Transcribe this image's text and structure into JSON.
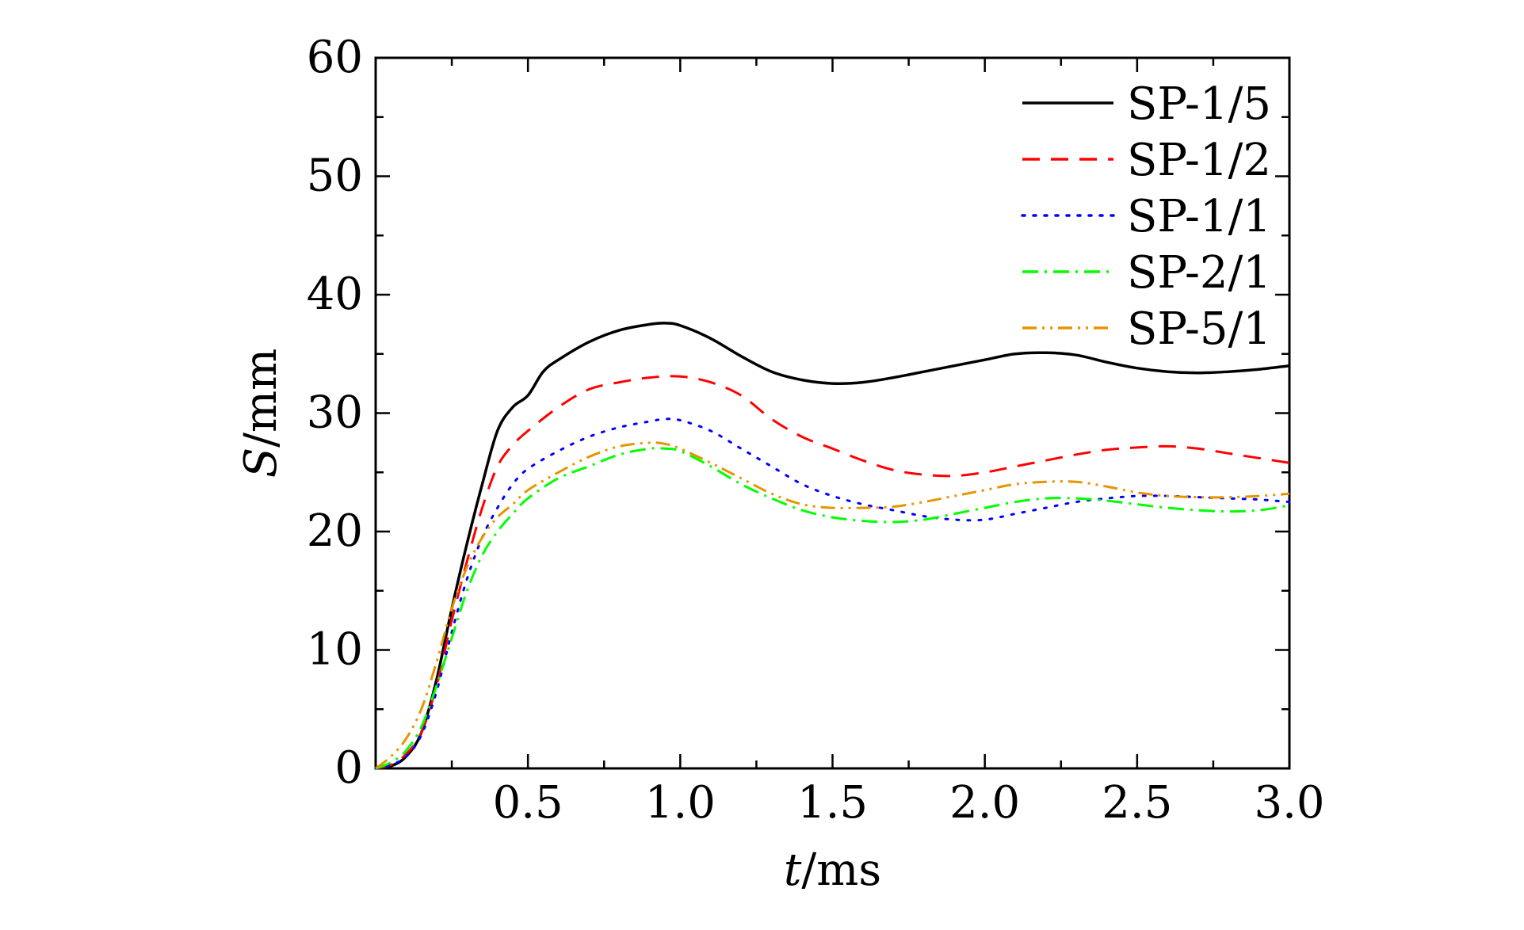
{
  "chart_data": {
    "type": "line",
    "xlabel": {
      "italic": "t",
      "rest": "/ms"
    },
    "ylabel": {
      "italic": "S",
      "rest": "/mm"
    },
    "xlim": [
      0,
      3.0
    ],
    "ylim": [
      0,
      60
    ],
    "xticks": [
      0.5,
      1.0,
      1.5,
      2.0,
      2.5,
      3.0
    ],
    "xtick_labels": [
      "0.5",
      "1.0",
      "1.5",
      "2.0",
      "2.5",
      "3.0"
    ],
    "yticks": [
      0,
      10,
      20,
      30,
      40,
      50,
      60
    ],
    "ytick_labels": [
      "0",
      "10",
      "20",
      "30",
      "40",
      "50",
      "60"
    ],
    "grid": false,
    "legend_position": "top-right",
    "series": [
      {
        "name": "SP-1/5",
        "color": "#000000",
        "dash": "solid",
        "x": [
          0,
          0.05,
          0.1,
          0.15,
          0.2,
          0.25,
          0.3,
          0.35,
          0.4,
          0.45,
          0.5,
          0.55,
          0.6,
          0.7,
          0.8,
          0.9,
          0.95,
          1.0,
          1.1,
          1.2,
          1.3,
          1.4,
          1.5,
          1.6,
          1.7,
          1.8,
          1.9,
          2.0,
          2.1,
          2.2,
          2.3,
          2.4,
          2.5,
          2.6,
          2.7,
          2.8,
          2.9,
          3.0
        ],
        "y": [
          0,
          0.2,
          1.0,
          3.0,
          7.5,
          13.5,
          19.0,
          24.0,
          28.5,
          30.5,
          31.5,
          33.5,
          34.5,
          36.0,
          37.0,
          37.5,
          37.6,
          37.4,
          36.3,
          34.8,
          33.5,
          32.8,
          32.5,
          32.6,
          33.0,
          33.5,
          34.0,
          34.5,
          35.0,
          35.1,
          34.9,
          34.3,
          33.8,
          33.5,
          33.4,
          33.5,
          33.7,
          34.0
        ]
      },
      {
        "name": "SP-1/2",
        "color": "#ff0000",
        "dash": "dashed",
        "x": [
          0,
          0.05,
          0.1,
          0.15,
          0.2,
          0.25,
          0.3,
          0.35,
          0.4,
          0.45,
          0.5,
          0.6,
          0.7,
          0.8,
          0.9,
          1.0,
          1.1,
          1.2,
          1.3,
          1.4,
          1.5,
          1.6,
          1.7,
          1.8,
          1.9,
          2.0,
          2.1,
          2.2,
          2.3,
          2.4,
          2.5,
          2.6,
          2.7,
          2.8,
          2.9,
          3.0
        ],
        "y": [
          0,
          0.3,
          1.2,
          3.0,
          7.0,
          12.5,
          17.5,
          22.0,
          25.5,
          27.3,
          28.5,
          30.5,
          32.0,
          32.6,
          33.0,
          33.1,
          32.6,
          31.5,
          29.5,
          28.0,
          27.0,
          26.0,
          25.2,
          24.8,
          24.7,
          25.0,
          25.5,
          26.0,
          26.5,
          26.9,
          27.1,
          27.2,
          27.0,
          26.6,
          26.2,
          25.8
        ]
      },
      {
        "name": "SP-1/1",
        "color": "#0000ff",
        "dash": "dotted",
        "x": [
          0,
          0.05,
          0.1,
          0.15,
          0.2,
          0.25,
          0.3,
          0.35,
          0.4,
          0.45,
          0.5,
          0.6,
          0.7,
          0.8,
          0.9,
          0.95,
          1.0,
          1.1,
          1.2,
          1.3,
          1.4,
          1.5,
          1.6,
          1.7,
          1.8,
          1.9,
          2.0,
          2.1,
          2.2,
          2.3,
          2.4,
          2.5,
          2.6,
          2.7,
          2.8,
          2.9,
          3.0
        ],
        "y": [
          0,
          0.3,
          1.0,
          2.8,
          6.5,
          11.5,
          16.0,
          19.5,
          22.0,
          24.0,
          25.3,
          26.8,
          28.0,
          28.8,
          29.3,
          29.5,
          29.4,
          28.5,
          27.0,
          25.5,
          24.0,
          23.0,
          22.3,
          21.8,
          21.3,
          21.0,
          21.0,
          21.5,
          22.0,
          22.5,
          22.8,
          23.0,
          23.0,
          22.9,
          22.8,
          22.7,
          22.5
        ]
      },
      {
        "name": "SP-2/1",
        "color": "#00ff00",
        "dash": "dashdot",
        "x": [
          0,
          0.05,
          0.1,
          0.15,
          0.2,
          0.25,
          0.3,
          0.35,
          0.4,
          0.45,
          0.5,
          0.6,
          0.7,
          0.8,
          0.9,
          0.95,
          1.0,
          1.1,
          1.2,
          1.3,
          1.4,
          1.5,
          1.6,
          1.7,
          1.8,
          1.9,
          2.0,
          2.1,
          2.2,
          2.3,
          2.4,
          2.5,
          2.6,
          2.7,
          2.8,
          2.9,
          3.0
        ],
        "y": [
          0,
          0.5,
          1.5,
          3.5,
          7.0,
          11.0,
          15.0,
          18.0,
          20.0,
          21.5,
          22.8,
          24.5,
          25.5,
          26.5,
          27.0,
          27.0,
          26.8,
          25.5,
          24.0,
          22.8,
          21.8,
          21.2,
          20.9,
          20.8,
          21.0,
          21.5,
          22.0,
          22.5,
          22.8,
          22.8,
          22.6,
          22.3,
          22.0,
          21.8,
          21.7,
          21.8,
          22.2
        ]
      },
      {
        "name": "SP-5/1",
        "color": "#e69500",
        "dash": "dashdotdot",
        "x": [
          0,
          0.05,
          0.1,
          0.15,
          0.2,
          0.25,
          0.3,
          0.35,
          0.4,
          0.45,
          0.5,
          0.6,
          0.7,
          0.8,
          0.9,
          0.95,
          1.0,
          1.1,
          1.2,
          1.3,
          1.4,
          1.5,
          1.6,
          1.7,
          1.8,
          1.9,
          2.0,
          2.1,
          2.2,
          2.3,
          2.4,
          2.5,
          2.6,
          2.7,
          2.8,
          2.9,
          3.0
        ],
        "y": [
          0,
          1.0,
          2.5,
          5.0,
          9.0,
          13.5,
          17.0,
          19.5,
          21.2,
          22.3,
          23.5,
          25.0,
          26.3,
          27.2,
          27.5,
          27.4,
          27.0,
          25.8,
          24.5,
          23.2,
          22.3,
          22.0,
          22.0,
          22.1,
          22.5,
          23.0,
          23.5,
          24.0,
          24.2,
          24.2,
          23.8,
          23.3,
          23.0,
          22.9,
          22.9,
          23.0,
          23.2
        ]
      }
    ]
  }
}
